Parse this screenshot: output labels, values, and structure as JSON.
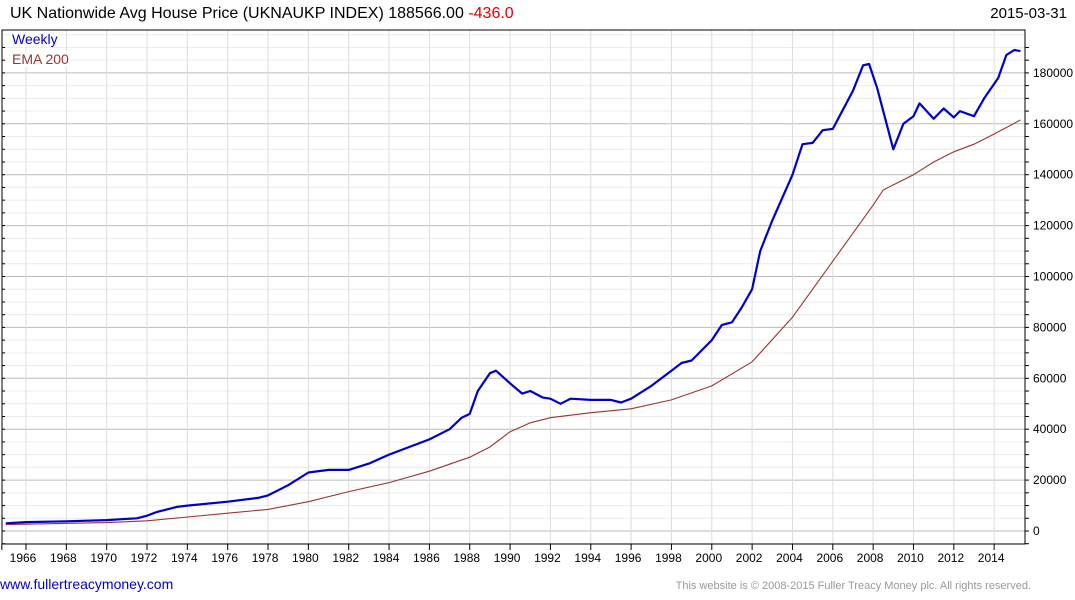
{
  "header": {
    "title": "UK Nationwide Avg House Price (UKNAUKP INDEX) 188566.00",
    "change": "-436.0",
    "date": "2015-03-31"
  },
  "legend": {
    "weekly": "Weekly",
    "ema": "EMA 200"
  },
  "footer": {
    "link": "www.fullertreacymoney.com",
    "copyright": "This website is © 2008-2015 Fuller Treacy Money plc. All rights reserved."
  },
  "colors": {
    "weekly": "#0000cc",
    "ema": "#993333",
    "change": "#e00000"
  },
  "chart_data": {
    "type": "line",
    "title": "UK Nationwide Avg House Price (UKNAUKP INDEX)",
    "last_value": 188566.0,
    "last_change": -436.0,
    "date": "2015-03-31",
    "xlabel": "",
    "ylabel": "",
    "ylim": [
      0,
      190000
    ],
    "xlim": [
      1964.3,
      1965.3
    ],
    "x_ticks": [
      "1966",
      "1968",
      "1970",
      "1972",
      "1974",
      "1976",
      "1978",
      "1980",
      "1982",
      "1984",
      "1986",
      "1988",
      "1990",
      "1992",
      "1994",
      "1996",
      "1998",
      "2000",
      "2002",
      "2004",
      "2006",
      "2008",
      "2010",
      "2012",
      "2014"
    ],
    "y_ticks": [
      0,
      20000,
      40000,
      60000,
      80000,
      100000,
      120000,
      140000,
      160000,
      180000
    ],
    "grid": true,
    "legend_position": "top-left",
    "series": [
      {
        "name": "Weekly",
        "color": "#0000cc",
        "x": [
          1965.0,
          1966,
          1968,
          1970,
          1971.5,
          1972,
          1972.5,
          1973.5,
          1974,
          1976,
          1977.5,
          1978,
          1979,
          1980,
          1981,
          1982,
          1983,
          1984,
          1985,
          1986,
          1987,
          1987.6,
          1988,
          1988.4,
          1989,
          1989.3,
          1990,
          1990.6,
          1991,
          1991.6,
          1992,
          1992.5,
          1993,
          1994,
          1995,
          1995.5,
          1996,
          1997,
          1998,
          1998.5,
          1999,
          2000,
          2000.5,
          2001,
          2001.5,
          2002,
          2002.4,
          2003,
          2004,
          2004.5,
          2005,
          2005.5,
          2006,
          2007,
          2007.5,
          2007.8,
          2008.2,
          2009,
          2009.5,
          2010,
          2010.3,
          2011,
          2011.5,
          2012,
          2012.3,
          2013,
          2013.5,
          2014.2,
          2014.6,
          2015.0,
          2015.3
        ],
        "values": [
          3000,
          3500,
          3800,
          4300,
          5000,
          6000,
          7500,
          9500,
          10000,
          11500,
          13000,
          14000,
          18000,
          23000,
          24000,
          24000,
          26500,
          30000,
          33000,
          36000,
          40000,
          44500,
          46000,
          55000,
          62000,
          63000,
          58000,
          54000,
          55000,
          52500,
          52000,
          50000,
          52000,
          51500,
          51500,
          50500,
          52000,
          57000,
          63000,
          66000,
          67000,
          75000,
          81000,
          82000,
          88000,
          95000,
          110000,
          122000,
          140000,
          152000,
          152500,
          157500,
          158000,
          173000,
          183000,
          183500,
          174000,
          150000,
          160000,
          163000,
          168000,
          162000,
          166000,
          162500,
          165000,
          163000,
          170000,
          178000,
          187000,
          189000,
          188566
        ]
      },
      {
        "name": "EMA 200",
        "color": "#993333",
        "x": [
          1965.0,
          1970,
          1972,
          1974,
          1976,
          1978,
          1980,
          1982,
          1984,
          1986,
          1988,
          1989,
          1990,
          1991,
          1992,
          1994,
          1996,
          1998,
          2000,
          2002,
          2004,
          2006,
          2008,
          2008.5,
          2009,
          2010,
          2011,
          2012,
          2013,
          2014,
          2015.3
        ],
        "values": [
          2500,
          3300,
          4000,
          5500,
          7000,
          8500,
          11500,
          15500,
          19000,
          23500,
          29000,
          33000,
          39000,
          42500,
          44500,
          46500,
          48000,
          51500,
          57000,
          66500,
          84000,
          106000,
          128000,
          134000,
          136000,
          140000,
          145000,
          149000,
          152000,
          156000,
          161500
        ]
      }
    ]
  }
}
